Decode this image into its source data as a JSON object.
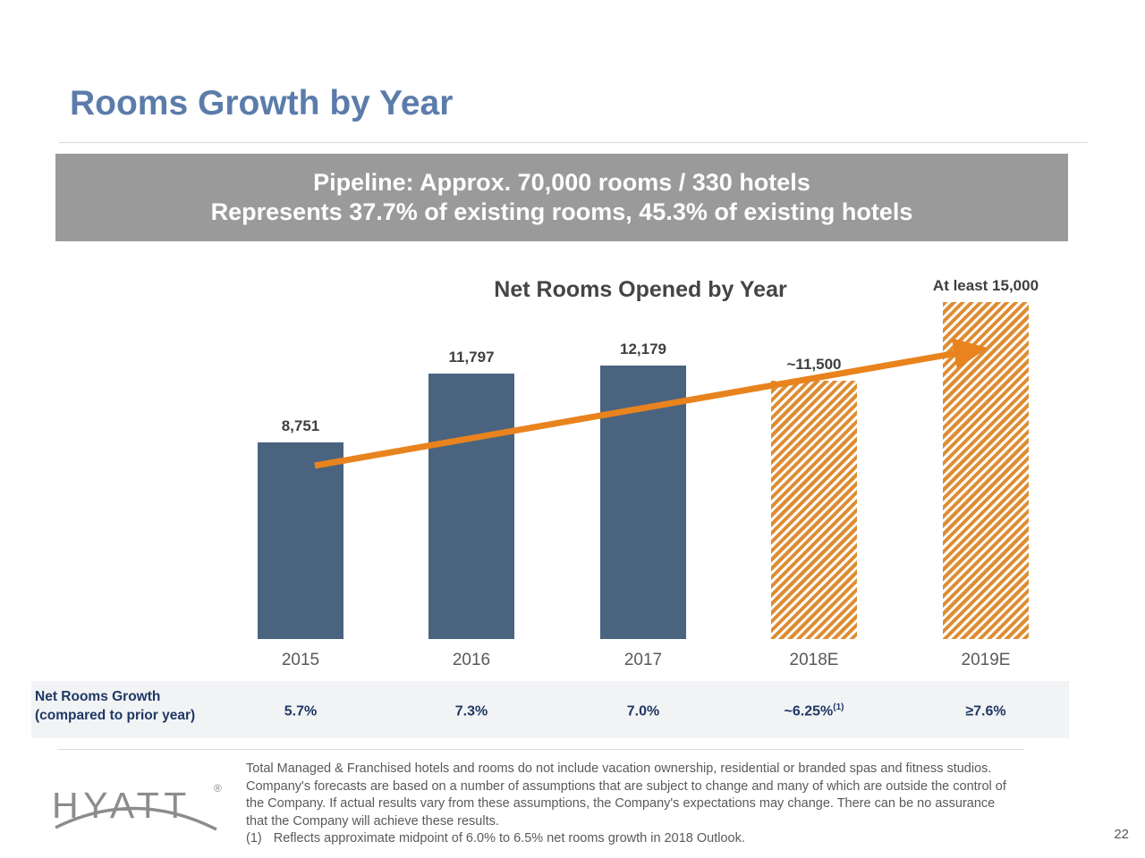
{
  "slide": {
    "title": "Rooms Growth by Year",
    "page_number": "22"
  },
  "banner": {
    "line1": "Pipeline: Approx. 70,000 rooms / 330 hotels",
    "line2": "Represents 37.7% of existing rooms, 45.3% of existing hotels"
  },
  "chart_data": {
    "type": "bar",
    "title": "Net Rooms Opened by Year",
    "categories": [
      "2015",
      "2016",
      "2017",
      "2018E",
      "2019E"
    ],
    "series": [
      {
        "name": "Net Rooms Opened",
        "values": [
          8751,
          11797,
          12179,
          11500,
          15000
        ]
      }
    ],
    "bar_labels": [
      "8,751",
      "11,797",
      "12,179",
      "~11,500",
      "At least 15,000"
    ],
    "bar_styles": [
      "solid",
      "solid",
      "solid",
      "hatched",
      "hatched"
    ],
    "ylim": [
      0,
      16000
    ],
    "grid": false,
    "legend": false,
    "annotations": [
      {
        "type": "arrow",
        "description": "upward trend arrow from 2015 bar to 2019E bar",
        "color": "#E8831D"
      }
    ],
    "colors": {
      "actual_bar": "#4A6480",
      "estimate_hatch": "#DE8D33",
      "arrow": "#E8831D"
    }
  },
  "growth_table": {
    "label_line1": "Net Rooms Growth",
    "label_line2": "(compared to prior year)",
    "values": [
      {
        "text": "5.7%",
        "sup": ""
      },
      {
        "text": "7.3%",
        "sup": ""
      },
      {
        "text": "7.0%",
        "sup": ""
      },
      {
        "text": "~6.25%",
        "sup": "(1)"
      },
      {
        "text": "≥7.6%",
        "sup": ""
      }
    ]
  },
  "footer": {
    "logo": {
      "text": "HYATT",
      "reg": "®"
    },
    "disclaimer_lines": [
      "Total Managed & Franchised hotels and rooms do not include vacation ownership, residential or branded spas and fitness studios.",
      "Company's forecasts are based on a number of assumptions that are subject to change and many of which are outside the control of",
      "the Company. If actual results vary from these assumptions, the Company's expectations may change. There can be no assurance",
      "that the Company will achieve these results."
    ],
    "footnote": {
      "marker": "(1)",
      "text": "Reflects approximate midpoint of 6.0% to 6.5% net rooms growth in 2018 Outlook."
    }
  }
}
